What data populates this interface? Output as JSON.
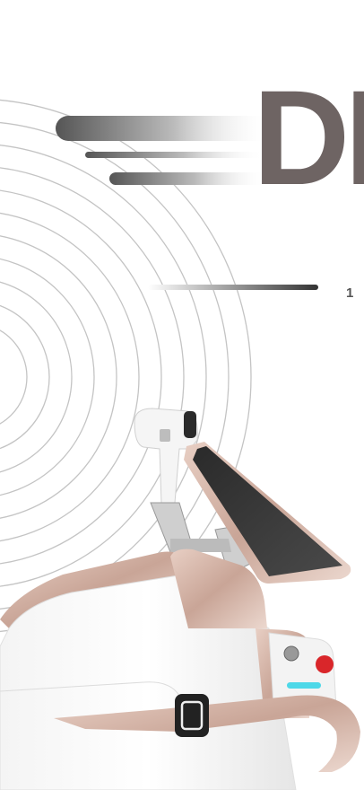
{
  "headline": "DI",
  "caption": "1"
}
